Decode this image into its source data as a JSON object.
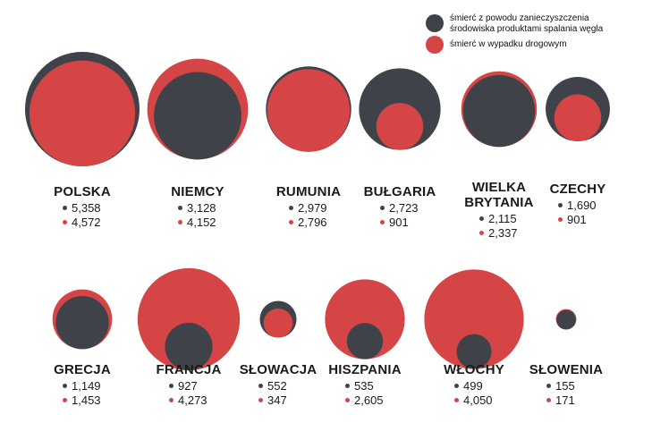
{
  "colors": {
    "pollution": "#3f4349",
    "road": "#d64545"
  },
  "legend": {
    "pollution_label": "śmierć z powodu zanieczyszczenia środowiska produktami spalania węgla",
    "road_label": "śmierć w wypadku drogowym"
  },
  "chart_data": {
    "type": "bubble",
    "title": "",
    "series": [
      {
        "name": "śmierć z powodu zanieczyszczenia środowiska produktami spalania węgla",
        "key": "pollution"
      },
      {
        "name": "śmierć w wypadku drogowym",
        "key": "road"
      }
    ],
    "countries": [
      {
        "name": "POLSKA",
        "pollution": 5358,
        "road": 4572,
        "pollution_label": "5,358",
        "road_label": "4,572"
      },
      {
        "name": "NIEMCY",
        "pollution": 3128,
        "road": 4152,
        "pollution_label": "3,128",
        "road_label": "4,152"
      },
      {
        "name": "RUMUNIA",
        "pollution": 2979,
        "road": 2796,
        "pollution_label": "2,979",
        "road_label": "2,796"
      },
      {
        "name": "BUŁGARIA",
        "pollution": 2723,
        "road": 901,
        "pollution_label": "2,723",
        "road_label": "901"
      },
      {
        "name": "WIELKA BRYTANIA",
        "pollution": 2115,
        "road": 2337,
        "pollution_label": "2,115",
        "road_label": "2,337"
      },
      {
        "name": "CZECHY",
        "pollution": 1690,
        "road": 901,
        "pollution_label": "1,690",
        "road_label": "901"
      },
      {
        "name": "GRECJA",
        "pollution": 1149,
        "road": 1453,
        "pollution_label": "1,149",
        "road_label": "1,453"
      },
      {
        "name": "FRANCJA",
        "pollution": 927,
        "road": 4273,
        "pollution_label": "927",
        "road_label": "4,273"
      },
      {
        "name": "SŁOWACJA",
        "pollution": 552,
        "road": 347,
        "pollution_label": "552",
        "road_label": "347"
      },
      {
        "name": "HISZPANIA",
        "pollution": 535,
        "road": 2605,
        "pollution_label": "535",
        "road_label": "2,605"
      },
      {
        "name": "WŁOCHY",
        "pollution": 499,
        "road": 4050,
        "pollution_label": "499",
        "road_label": "4,050"
      },
      {
        "name": "SŁOWENIA",
        "pollution": 155,
        "road": 171,
        "pollution_label": "155",
        "road_label": "171"
      }
    ]
  }
}
